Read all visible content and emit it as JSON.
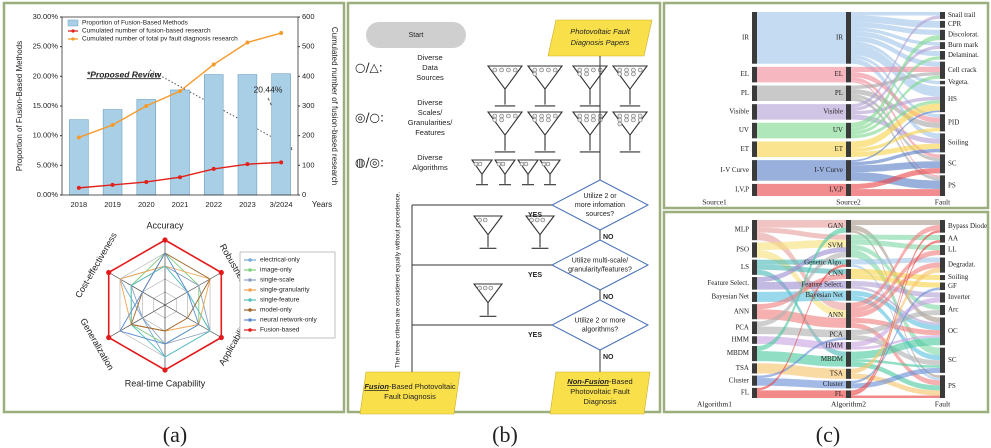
{
  "chart_data": [
    {
      "type": "combo",
      "categories": [
        "2018",
        "2019",
        "2020",
        "2021",
        "2022",
        "2023",
        "3/2024"
      ],
      "series": [
        {
          "name": "Proportion of Fusion-Based Methods",
          "type": "bar",
          "color": "#a9cfe6",
          "values": [
            12.7,
            14.4,
            16.1,
            17.7,
            20.3,
            20.3,
            20.44
          ]
        },
        {
          "name": "Cumulated number of fusion-based research",
          "type": "line",
          "axis": "y2",
          "color": "#e0221b",
          "values": [
            24,
            34,
            44,
            60,
            88,
            104,
            110
          ]
        },
        {
          "name": "Cumulated number of total pv fault diagnosis research",
          "type": "line",
          "axis": "y2",
          "color": "#f59a2b",
          "values": [
            194,
            236,
            300,
            350,
            440,
            514,
            546
          ]
        }
      ],
      "ylim": [
        0,
        30
      ],
      "yticks": [
        {
          "value": 0,
          "label": "0.00%"
        },
        {
          "value": 5,
          "label": "5.00%"
        },
        {
          "value": 10,
          "label": "10.00%"
        },
        {
          "value": 15,
          "label": "15.00%"
        },
        {
          "value": 20,
          "label": "20.00%"
        },
        {
          "value": 25,
          "label": "25.00%"
        },
        {
          "value": 30,
          "label": "30.00%"
        }
      ],
      "y2lim": [
        0,
        600
      ],
      "y2ticks": [
        0,
        100,
        200,
        300,
        400,
        500,
        600
      ],
      "x_label": "Years",
      "y_label": "Proportion of Fusion-Based Methods",
      "y2_label": "Cumulated number of fusion-based research",
      "annotations": [
        "*Proposed Review",
        "20.44%"
      ],
      "legend": "upper left"
    },
    {
      "type": "radar",
      "axes": [
        "Accuracy",
        "Robustness",
        "Applicability",
        "Real-time Capability",
        "Generalization",
        "Cost-effectiveness"
      ],
      "rlim": [
        0,
        5
      ],
      "rticks": [
        1,
        2,
        3,
        4,
        5
      ],
      "series": [
        {
          "name": "electrical-only",
          "color": "#76acd6",
          "values": [
            3,
            2,
            4,
            4,
            2,
            4
          ]
        },
        {
          "name": "image-only",
          "color": "#7fcf7f",
          "values": [
            4,
            3,
            3,
            3,
            3,
            3
          ]
        },
        {
          "name": "single-scale",
          "color": "#8c9fc0",
          "values": [
            3,
            3,
            4,
            3,
            2,
            3
          ]
        },
        {
          "name": "single-granularity",
          "color": "#f2a24f",
          "values": [
            3,
            4,
            3,
            2,
            3,
            4
          ]
        },
        {
          "name": "single-feature",
          "color": "#55c1bf",
          "values": [
            3,
            2,
            4,
            4,
            3,
            3
          ]
        },
        {
          "name": "model-only",
          "color": "#a0662a",
          "values": [
            4,
            4,
            2,
            2,
            3,
            2
          ]
        },
        {
          "name": "neural network-only",
          "color": "#5a8ad0",
          "values": [
            4,
            2,
            3,
            3,
            4,
            2
          ]
        },
        {
          "name": "Fusion-based",
          "color": "#e31a1c",
          "values": [
            5,
            5,
            5,
            5,
            5,
            5
          ]
        }
      ],
      "legend": "right"
    },
    {
      "type": "sankey",
      "columns": [
        {
          "label": "Source1",
          "nodes": [
            "IR",
            "EL",
            "PL",
            "Visible",
            "UV",
            "ET",
            "I-V Curve",
            "I,V,P"
          ],
          "colors": [
            "#9fc5e8",
            "#f28b9b",
            "#a8a8a8",
            "#b3a2d3",
            "#7fd98f",
            "#f7d44c",
            "#5b7fc7",
            "#e8454a"
          ]
        },
        {
          "label": "Source2",
          "nodes": [
            "IR",
            "EL",
            "PL",
            "Visible",
            "UV",
            "ET",
            "I-V Curve",
            "I,V,P"
          ],
          "colors": [
            "#9fc5e8",
            "#f28b9b",
            "#a8a8a8",
            "#b3a2d3",
            "#7fd98f",
            "#f7d44c",
            "#5b7fc7",
            "#e8454a"
          ]
        },
        {
          "label": "Fault",
          "nodes": [
            "Snail trail",
            "CPR",
            "Discolorat.",
            "Burn mark",
            "Delaminat.",
            "Cell crack",
            "Vegeta.",
            "HS",
            "PID",
            "Soiling",
            "SC",
            "PS"
          ]
        }
      ],
      "flows": [
        [
          {
            "source": "IR",
            "target": "IR",
            "value": 30
          },
          {
            "source": "EL",
            "target": "EL",
            "value": 9
          },
          {
            "source": "PL",
            "target": "PL",
            "value": 9
          },
          {
            "source": "Visible",
            "target": "Visible",
            "value": 9
          },
          {
            "source": "UV",
            "target": "UV",
            "value": 9
          },
          {
            "source": "ET",
            "target": "ET",
            "value": 9
          },
          {
            "source": "I-V Curve",
            "target": "I-V Curve",
            "value": 12
          },
          {
            "source": "I,V,P",
            "target": "I,V,P",
            "value": 7
          }
        ],
        [
          {
            "source": "IR",
            "target": "Snail trail",
            "value": 2
          },
          {
            "source": "IR",
            "target": "CPR",
            "value": 4
          },
          {
            "source": "IR",
            "target": "Discolorat.",
            "value": 3
          },
          {
            "source": "IR",
            "target": "Burn mark",
            "value": 2
          },
          {
            "source": "IR",
            "target": "Delaminat.",
            "value": 3
          },
          {
            "source": "IR",
            "target": "Cell crack",
            "value": 3
          },
          {
            "source": "IR",
            "target": "Vegeta.",
            "value": 2
          },
          {
            "source": "IR",
            "target": "HS",
            "value": 6
          },
          {
            "source": "IR",
            "target": "PID",
            "value": 2
          },
          {
            "source": "IR",
            "target": "Soiling",
            "value": 3
          },
          {
            "source": "EL",
            "target": "Cell crack",
            "value": 3
          },
          {
            "source": "EL",
            "target": "PID",
            "value": 3
          },
          {
            "source": "EL",
            "target": "SC",
            "value": 2
          },
          {
            "source": "EL",
            "target": "PS",
            "value": 1
          },
          {
            "source": "PL",
            "target": "Cell crack",
            "value": 2
          },
          {
            "source": "PL",
            "target": "PID",
            "value": 3
          },
          {
            "source": "PL",
            "target": "SC",
            "value": 2
          },
          {
            "source": "PL",
            "target": "PS",
            "value": 2
          },
          {
            "source": "Visible",
            "target": "Snail trail",
            "value": 2
          },
          {
            "source": "Visible",
            "target": "Burn mark",
            "value": 2
          },
          {
            "source": "Visible",
            "target": "HS",
            "value": 2
          },
          {
            "source": "Visible",
            "target": "Soiling",
            "value": 3
          },
          {
            "source": "UV",
            "target": "Discolorat.",
            "value": 3
          },
          {
            "source": "UV",
            "target": "Delaminat.",
            "value": 2
          },
          {
            "source": "UV",
            "target": "Cell crack",
            "value": 2
          },
          {
            "source": "UV",
            "target": "HS",
            "value": 2
          },
          {
            "source": "ET",
            "target": "HS",
            "value": 4
          },
          {
            "source": "ET",
            "target": "PID",
            "value": 2
          },
          {
            "source": "ET",
            "target": "Soiling",
            "value": 3
          },
          {
            "source": "I-V Curve",
            "target": "HS",
            "value": 1
          },
          {
            "source": "I-V Curve",
            "target": "Soiling",
            "value": 2
          },
          {
            "source": "I-V Curve",
            "target": "SC",
            "value": 4
          },
          {
            "source": "I-V Curve",
            "target": "PS",
            "value": 5
          },
          {
            "source": "I,V,P",
            "target": "SC",
            "value": 3
          },
          {
            "source": "I,V,P",
            "target": "PS",
            "value": 4
          }
        ]
      ]
    },
    {
      "type": "sankey",
      "columns": [
        {
          "label": "Algorithm1",
          "nodes": [
            "MLP",
            "PSO",
            "LS",
            "Feature Select.",
            "Bayesian Net",
            "ANN",
            "PCA",
            "HMM",
            "MBDM",
            "TSA",
            "Cluster",
            "FL"
          ],
          "colors": [
            "#e8a0a0",
            "#f5e17a",
            "#4cb8b8",
            "#9c8fd0",
            "#5cc0e0",
            "#f08080",
            "#b0b0b0",
            "#c8a5e0",
            "#4cc9a0",
            "#f7c36b",
            "#6b8fd6",
            "#e84040"
          ]
        },
        {
          "label": "Algorithm2",
          "nodes": [
            "GAN",
            "SVM",
            "Genetic Algo.",
            "CNN",
            "Feature Select.",
            "Bayesian Net",
            "ANN",
            "PCA",
            "HMM",
            "MBDM",
            "TSA",
            "Cluster",
            "FL"
          ],
          "colors": [
            "#a89a8a",
            "#7fd9a8",
            "#9fc5e8",
            "#f7d44c",
            "#b3a2d3",
            "#5cc0e0",
            "#f08080",
            "#b0b0b0",
            "#c8a5e0",
            "#4cc9a0",
            "#f7c36b",
            "#6b8fd6",
            "#e84040"
          ]
        },
        {
          "label": "Fault",
          "nodes": [
            "Bypass Diode",
            "AA",
            "LL",
            "Degradat.",
            "Soiling",
            "GF",
            "Inverter",
            "Arc",
            "OC",
            "SC",
            "PS"
          ]
        }
      ],
      "flows": [
        [
          {
            "source": "MLP",
            "target": "GAN",
            "value": 3
          },
          {
            "source": "MLP",
            "target": "SVM",
            "value": 2
          },
          {
            "source": "MLP",
            "target": "ANN",
            "value": 3
          },
          {
            "source": "PSO",
            "target": "SVM",
            "value": 3
          },
          {
            "source": "PSO",
            "target": "ANN",
            "value": 3
          },
          {
            "source": "LS",
            "target": "Genetic Algo.",
            "value": 2
          },
          {
            "source": "LS",
            "target": "CNN",
            "value": 2
          },
          {
            "source": "LS",
            "target": "MBDM",
            "value": 2
          },
          {
            "source": "Feature Select.",
            "target": "SVM",
            "value": 2
          },
          {
            "source": "Feature Select.",
            "target": "Feature Select.",
            "value": 3
          },
          {
            "source": "Bayesian Net",
            "target": "Bayesian Net",
            "value": 4
          },
          {
            "source": "ANN",
            "target": "CNN",
            "value": 2
          },
          {
            "source": "ANN",
            "target": "ANN",
            "value": 4
          },
          {
            "source": "PCA",
            "target": "SVM",
            "value": 2
          },
          {
            "source": "PCA",
            "target": "PCA",
            "value": 3
          },
          {
            "source": "HMM",
            "target": "HMM",
            "value": 3
          },
          {
            "source": "MBDM",
            "target": "GAN",
            "value": 2
          },
          {
            "source": "MBDM",
            "target": "MBDM",
            "value": 4
          },
          {
            "source": "TSA",
            "target": "TSA",
            "value": 4
          },
          {
            "source": "Cluster",
            "target": "PCA",
            "value": 1
          },
          {
            "source": "Cluster",
            "target": "Cluster",
            "value": 3
          },
          {
            "source": "FL",
            "target": "Genetic Algo.",
            "value": 1
          },
          {
            "source": "FL",
            "target": "FL",
            "value": 3
          }
        ],
        [
          {
            "source": "GAN",
            "target": "Bypass Diode",
            "value": 2
          },
          {
            "source": "GAN",
            "target": "OC",
            "value": 2
          },
          {
            "source": "GAN",
            "target": "PS",
            "value": 1
          },
          {
            "source": "SVM",
            "target": "AA",
            "value": 2
          },
          {
            "source": "SVM",
            "target": "LL",
            "value": 2
          },
          {
            "source": "SVM",
            "target": "Arc",
            "value": 2
          },
          {
            "source": "SVM",
            "target": "SC",
            "value": 3
          },
          {
            "source": "Genetic Algo.",
            "target": "Degradat.",
            "value": 2
          },
          {
            "source": "Genetic Algo.",
            "target": "PS",
            "value": 1
          },
          {
            "source": "CNN",
            "target": "Soiling",
            "value": 2
          },
          {
            "source": "CNN",
            "target": "GF",
            "value": 2
          },
          {
            "source": "Feature Select.",
            "target": "Inverter",
            "value": 2
          },
          {
            "source": "Feature Select.",
            "target": "OC",
            "value": 1
          },
          {
            "source": "Bayesian Net",
            "target": "OC",
            "value": 2
          },
          {
            "source": "Bayesian Net",
            "target": "SC",
            "value": 2
          },
          {
            "source": "ANN",
            "target": "Bypass Diode",
            "value": 2
          },
          {
            "source": "ANN",
            "target": "LL",
            "value": 2
          },
          {
            "source": "ANN",
            "target": "Degradat.",
            "value": 2
          },
          {
            "source": "ANN",
            "target": "OC",
            "value": 2
          },
          {
            "source": "ANN",
            "target": "PS",
            "value": 2
          },
          {
            "source": "PCA",
            "target": "Arc",
            "value": 2
          },
          {
            "source": "PCA",
            "target": "SC",
            "value": 2
          },
          {
            "source": "HMM",
            "target": "Inverter",
            "value": 2
          },
          {
            "source": "HMM",
            "target": "OC",
            "value": 1
          },
          {
            "source": "MBDM",
            "target": "OC",
            "value": 3
          },
          {
            "source": "MBDM",
            "target": "SC",
            "value": 1
          },
          {
            "source": "MBDM",
            "target": "PS",
            "value": 2
          },
          {
            "source": "TSA",
            "target": "Degradat.",
            "value": 2
          },
          {
            "source": "TSA",
            "target": "PS",
            "value": 2
          },
          {
            "source": "Cluster",
            "target": "GF",
            "value": 1
          },
          {
            "source": "Cluster",
            "target": "SC",
            "value": 2
          },
          {
            "source": "FL",
            "target": "Bypass Diode",
            "value": 1
          },
          {
            "source": "FL",
            "target": "AA",
            "value": 1
          },
          {
            "source": "FL",
            "target": "PS",
            "value": 1
          }
        ]
      ]
    }
  ],
  "flowchart": {
    "start": "Start",
    "papers": [
      "Photovoltaic Fault",
      "Diagnosis Papers"
    ],
    "legend": [
      {
        "symbol": "○/△:",
        "text": [
          "Diverse",
          "Data",
          "Sources"
        ]
      },
      {
        "symbol": "◎/○:",
        "text": [
          "Diverse",
          "Scales/",
          "Granularities/",
          "Features"
        ]
      },
      {
        "symbol": "◍/◎:",
        "text": [
          "Diverse",
          "Algorithms"
        ]
      }
    ],
    "decisions": [
      {
        "text": [
          "Utilize 2 or",
          "more infomation",
          "sources?"
        ],
        "yes": "YES",
        "no": "NO"
      },
      {
        "text": [
          "Utilize multi-scale/",
          "granularity/features?"
        ],
        "yes": "YES",
        "no": "NO"
      },
      {
        "text": [
          "Utilize 2 or more",
          "algorithms?"
        ],
        "yes": "YES",
        "no": "NO"
      }
    ],
    "note": "The three criteria are considered equally without precedence.",
    "outputs": [
      {
        "emph": "Fusion",
        "rest": "-Based Photovoltaic",
        "lines": [
          "Fault Diagnosis"
        ]
      },
      {
        "emph": "Non-Fusion",
        "rest": "-Based",
        "lines": [
          "Photovoltaic Fault",
          "Diagnosis"
        ]
      }
    ]
  },
  "captions": [
    "(a)",
    "(b)",
    "(c)"
  ]
}
